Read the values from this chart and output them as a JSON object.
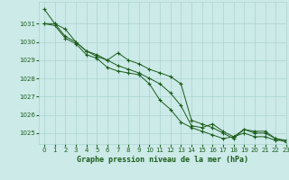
{
  "title": "Graphe pression niveau de la mer (hPa)",
  "bg_color": "#cceae8",
  "grid_color": "#aad4d0",
  "line_color": "#1a5c1a",
  "text_color": "#1a5c1a",
  "xlim": [
    -0.5,
    23
  ],
  "ylim": [
    1024.4,
    1032.2
  ],
  "yticks": [
    1025,
    1026,
    1027,
    1028,
    1029,
    1030,
    1031
  ],
  "xticks": [
    0,
    1,
    2,
    3,
    4,
    5,
    6,
    7,
    8,
    9,
    10,
    11,
    12,
    13,
    14,
    15,
    16,
    17,
    18,
    19,
    20,
    21,
    22,
    23
  ],
  "series": [
    [
      1031.8,
      1031.0,
      1030.7,
      1030.0,
      1029.5,
      1029.2,
      1029.0,
      1028.7,
      1028.5,
      1028.3,
      1028.0,
      1027.7,
      1027.2,
      1026.5,
      1025.4,
      1025.3,
      1025.5,
      1025.1,
      1024.8,
      1025.2,
      1025.1,
      1025.1,
      1024.7,
      1024.6
    ],
    [
      1031.0,
      1030.9,
      1030.2,
      1029.9,
      1029.3,
      1029.1,
      1028.6,
      1028.4,
      1028.3,
      1028.2,
      1027.7,
      1026.8,
      1026.3,
      1025.6,
      1025.3,
      1025.1,
      1024.9,
      1024.7,
      1024.8,
      1025.0,
      1024.8,
      1024.8,
      1024.6,
      1024.6
    ],
    [
      1031.0,
      1031.0,
      1030.3,
      1030.0,
      1029.5,
      1029.3,
      1029.0,
      1029.4,
      1029.0,
      1028.8,
      1028.5,
      1028.3,
      1028.1,
      1027.7,
      1025.7,
      1025.5,
      1025.3,
      1025.0,
      1024.7,
      1025.2,
      1025.0,
      1025.0,
      1024.7,
      1024.5
    ]
  ]
}
